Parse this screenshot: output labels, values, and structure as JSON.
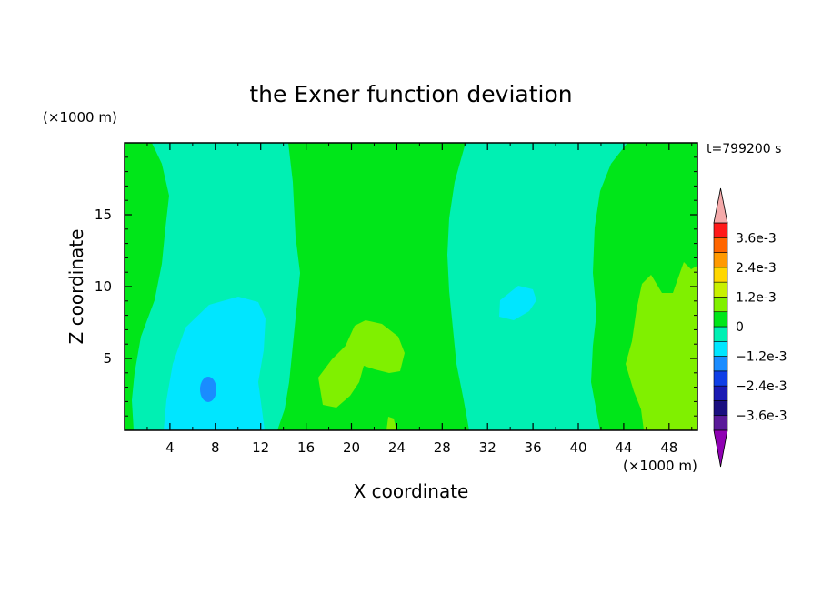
{
  "chart_data": {
    "type": "heatmap",
    "title": "the Exner function deviation",
    "xlabel": "X coordinate",
    "ylabel": "Z coordinate",
    "x_unit": "(×1000 m)",
    "y_unit": "(×1000 m)",
    "time_label": "t=799200 s",
    "xlim": [
      0,
      50.5
    ],
    "ylim": [
      0,
      20
    ],
    "x_ticks": [
      4,
      8,
      12,
      16,
      20,
      24,
      28,
      32,
      36,
      40,
      44,
      48
    ],
    "x_tick_labels": [
      "4",
      "8",
      "12",
      "16",
      "20",
      "24",
      "28",
      "32",
      "36",
      "40",
      "44",
      "48"
    ],
    "y_ticks": [
      5,
      10,
      15
    ],
    "y_tick_labels": [
      "5",
      "10",
      "15"
    ],
    "colorbar": {
      "levels": [
        -0.0042,
        -0.0036,
        -0.003,
        -0.0024,
        -0.0018,
        -0.0012,
        -0.0006,
        0,
        0.0006,
        0.0012,
        0.0018,
        0.0024,
        0.003,
        0.0036,
        0.0042
      ],
      "colors": [
        "#8f00b3",
        "#5a1a99",
        "#1a0f80",
        "#1a1ab3",
        "#0f3fe6",
        "#1a8cff",
        "#00e6ff",
        "#00f0b3",
        "#00e619",
        "#80f000",
        "#c8f000",
        "#ffd700",
        "#ff9900",
        "#ff6600",
        "#ff1a1a",
        "#f5aaaa"
      ],
      "tick_labels": [
        "3.6e-3",
        "2.4e-3",
        "1.2e-3",
        "0",
        "−1.2e-3",
        "−2.4e-3",
        "−3.6e-3"
      ]
    },
    "regions": [
      {
        "label": "positive band",
        "x_range": [
          14,
          29
        ],
        "level": "0 to 6e-4"
      },
      {
        "label": "negative column",
        "x_range": [
          4,
          13
        ],
        "level": "-6e-4 to 0"
      },
      {
        "label": "negative minimum",
        "x": 7.5,
        "z": 2.7,
        "level": "-1.8e-3 to -1.2e-3"
      },
      {
        "label": "negative column",
        "x_range": [
          29,
          42
        ],
        "level": "-6e-4 to 0"
      },
      {
        "label": "positive maximum",
        "x_range": [
          44,
          50
        ],
        "level": "6e-4 to 1.2e-3"
      },
      {
        "label": "positive patch",
        "x": 21,
        "z": 5,
        "level": "6e-4 to 1.2e-3"
      }
    ]
  }
}
